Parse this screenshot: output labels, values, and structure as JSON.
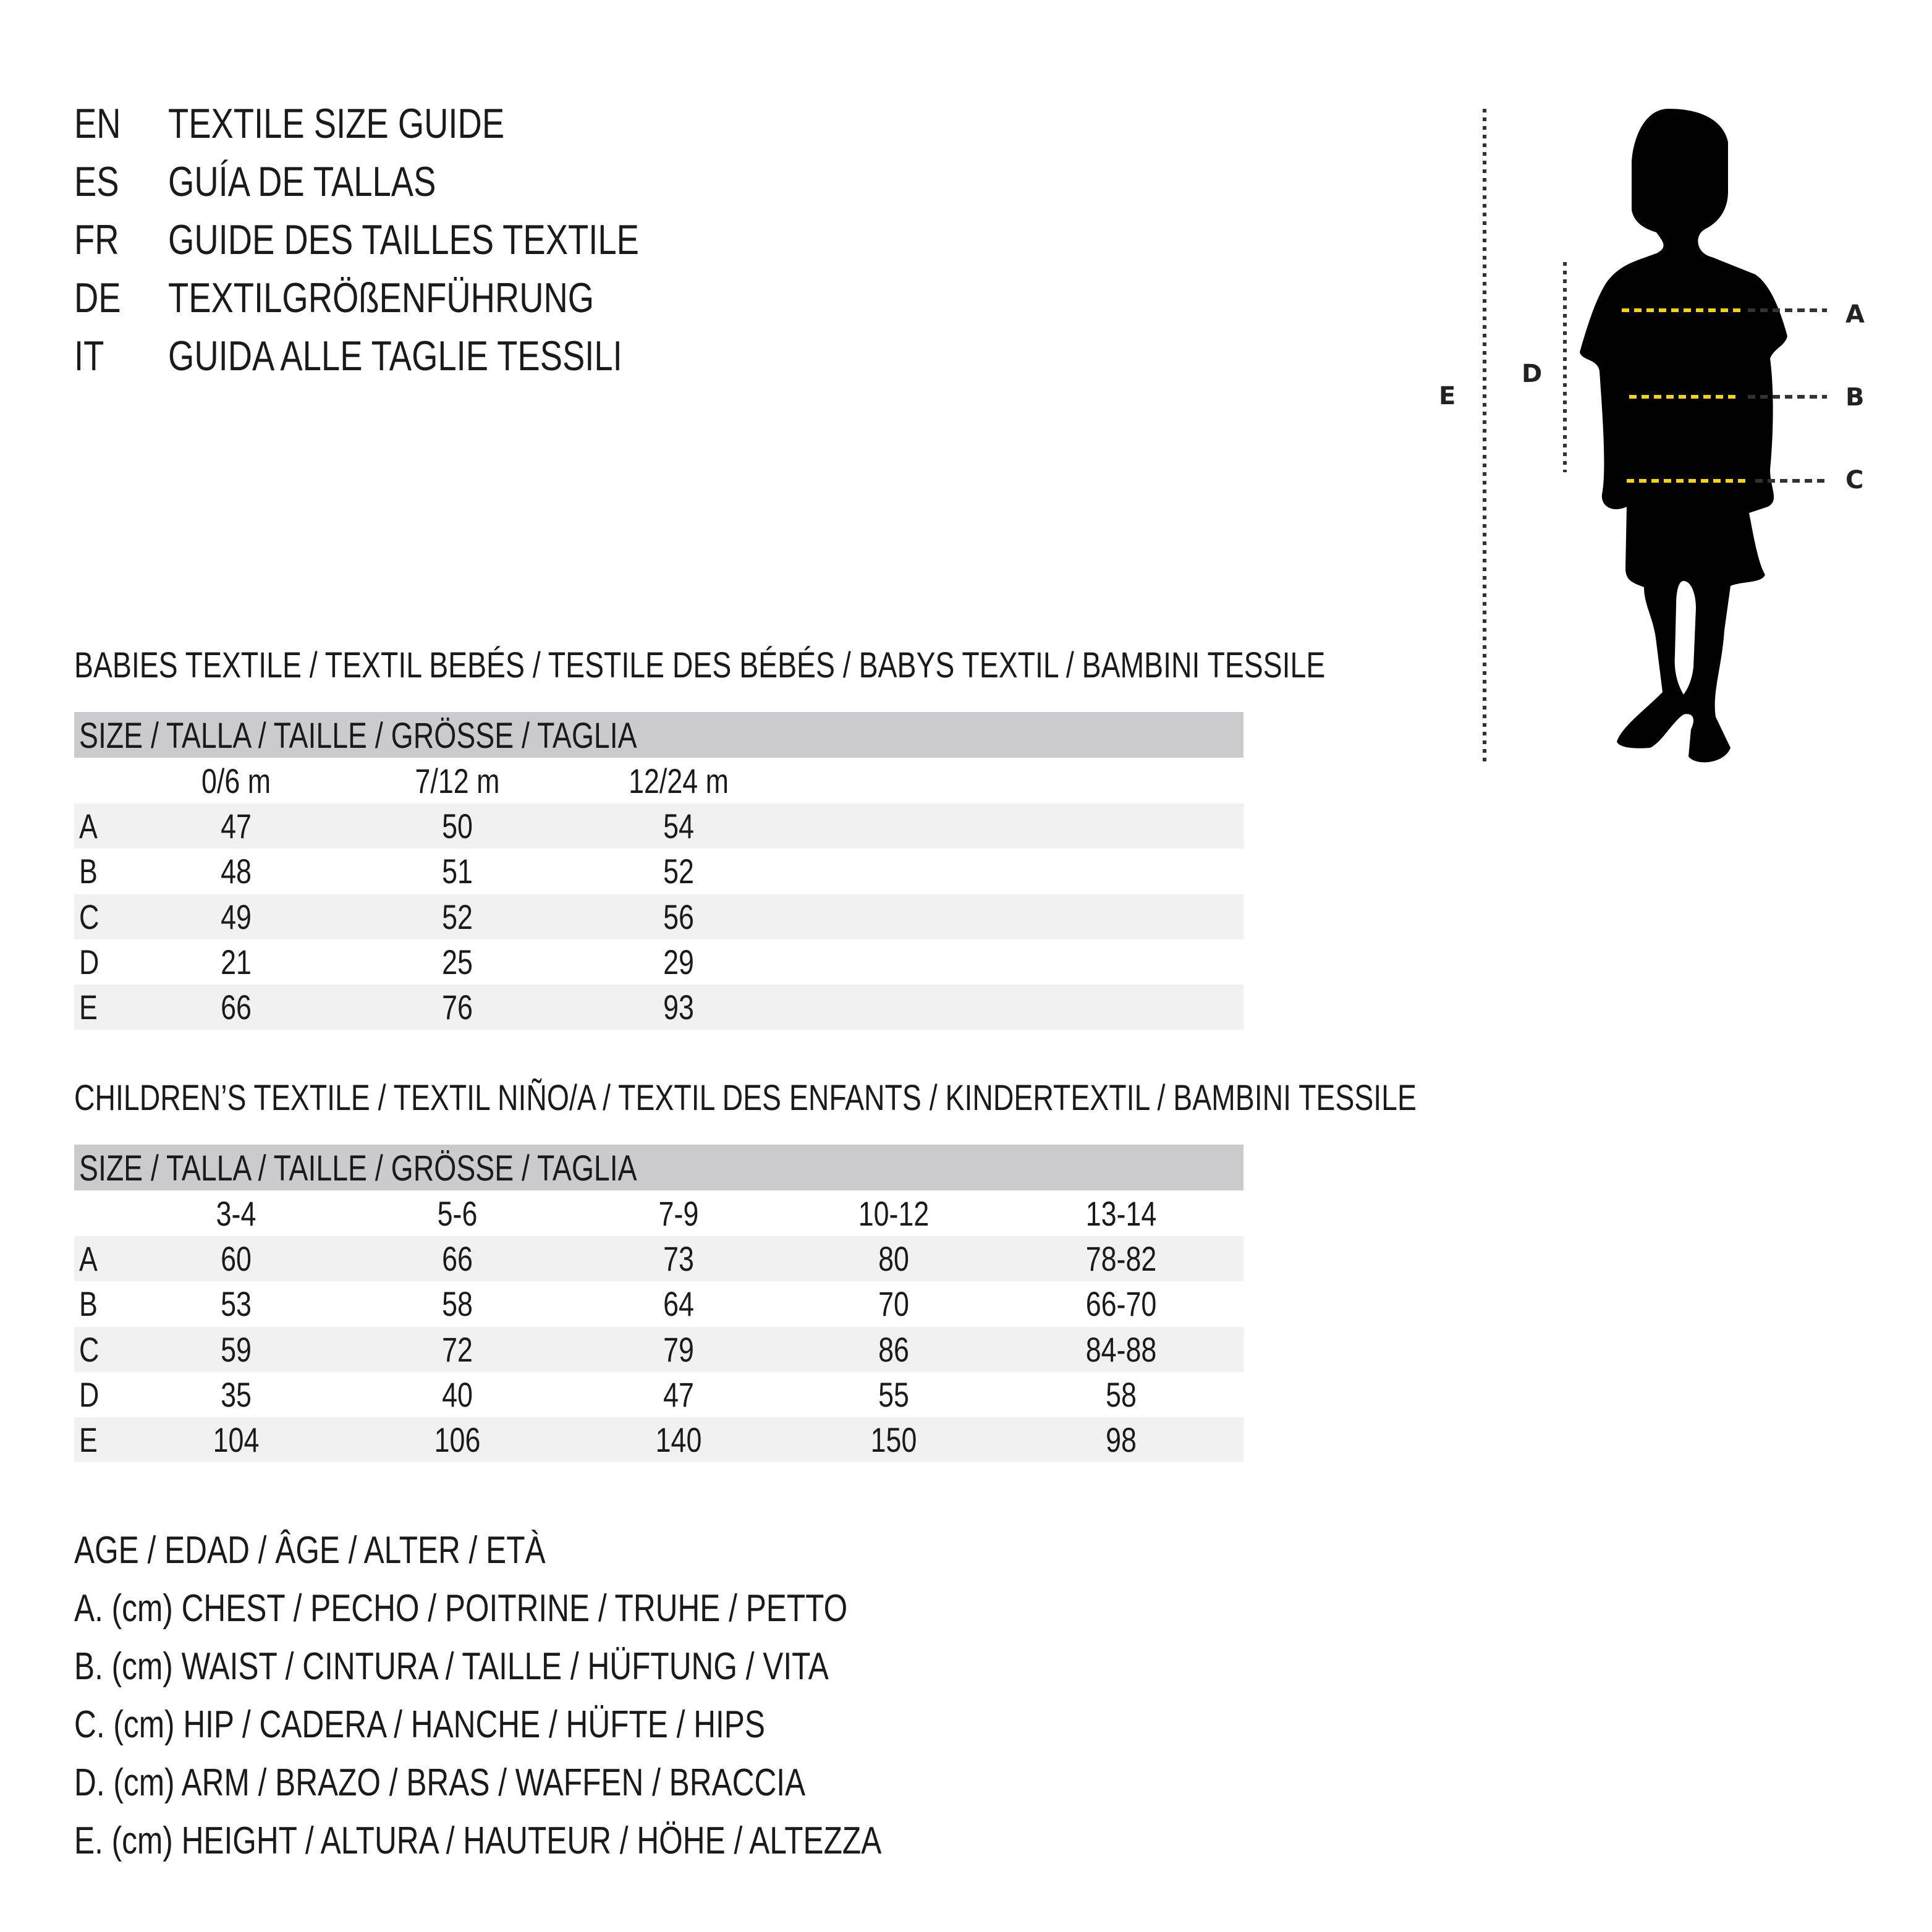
{
  "titles": [
    {
      "code": "EN",
      "text": "TEXTILE SIZE GUIDE"
    },
    {
      "code": "ES",
      "text": "GUÍA DE TALLAS"
    },
    {
      "code": "FR",
      "text": "GUIDE DES TAILLES TEXTILE"
    },
    {
      "code": "DE",
      "text": "TEXTILGRÖßENFÜHRUNG"
    },
    {
      "code": "IT",
      "text": "GUIDA ALLE TAGLIE TESSILI"
    }
  ],
  "babies": {
    "heading": "BABIES TEXTILE / TEXTIL BEBÉS / TESTILE DES BÉBÉS / BABYS TEXTIL / BAMBINI TESSILE",
    "size_header": "SIZE / TALLA / TAILLE / GRÖSSE / TAGLIA",
    "columns": [
      "0/6 m",
      "7/12 m",
      "12/24 m"
    ],
    "rows": [
      {
        "label": "A",
        "values": [
          "47",
          "50",
          "54"
        ]
      },
      {
        "label": "B",
        "values": [
          "48",
          "51",
          "52"
        ]
      },
      {
        "label": "C",
        "values": [
          "49",
          "52",
          "56"
        ]
      },
      {
        "label": "D",
        "values": [
          "21",
          "25",
          "29"
        ]
      },
      {
        "label": "E",
        "values": [
          "66",
          "76",
          "93"
        ]
      }
    ]
  },
  "children": {
    "heading": "CHILDREN’S TEXTILE / TEXTIL NIÑO/A / TEXTIL DES ENFANTS / KINDERTEXTIL / BAMBINI TESSILE",
    "size_header": "SIZE / TALLA / TAILLE / GRÖSSE / TAGLIA",
    "columns": [
      "3-4",
      "5-6",
      "7-9",
      "10-12",
      "13-14"
    ],
    "rows": [
      {
        "label": "A",
        "values": [
          "60",
          "66",
          "73",
          "80",
          "78-82"
        ]
      },
      {
        "label": "B",
        "values": [
          "53",
          "58",
          "64",
          "70",
          "66-70"
        ]
      },
      {
        "label": "C",
        "values": [
          "59",
          "72",
          "79",
          "86",
          "84-88"
        ]
      },
      {
        "label": "D",
        "values": [
          "35",
          "40",
          "47",
          "55",
          "58"
        ]
      },
      {
        "label": "E",
        "values": [
          "104",
          "106",
          "140",
          "150",
          "98"
        ]
      }
    ]
  },
  "legend": [
    "AGE / EDAD / ÂGE / ALTER / ETÀ",
    "A. (cm) CHEST / PECHO / POITRINE / TRUHE / PETTO",
    "B. (cm) WAIST / CINTURA / TAILLE / HÜFTUNG / VITA",
    "C. (cm) HIP / CADERA / HANCHE / HÜFTE / HIPS",
    "D. (cm) ARM / BRAZO / BRAS / WAFFEN / BRACCIA",
    "E. (cm) HEIGHT / ALTURA / HAUTEUR / HÖHE / ALTEZZA"
  ],
  "figure": {
    "labels": {
      "a": "A",
      "b": "B",
      "c": "C",
      "d": "D",
      "e": "E"
    },
    "measure_color": "#f2d21b",
    "silhouette_color": "#000000"
  }
}
